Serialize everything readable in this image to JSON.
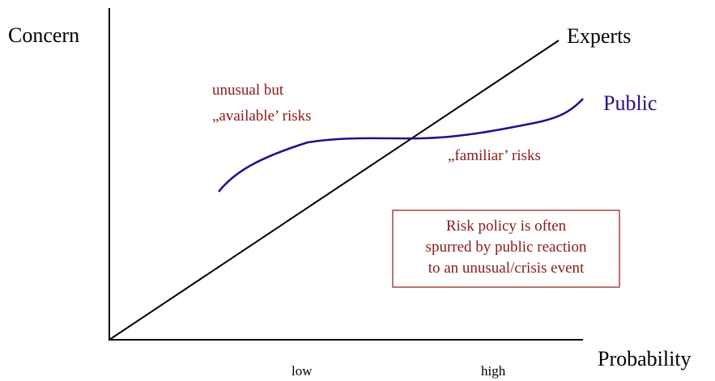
{
  "axes": {
    "y_label": "Concern",
    "x_label": "Probability",
    "x_low": "low",
    "x_high": "high"
  },
  "curves": [
    {
      "label": "Experts"
    },
    {
      "label": "Public"
    }
  ],
  "annotations": {
    "unusual": [
      "unusual but",
      "„available’ risks"
    ],
    "familiar": "„familiar’ risks"
  },
  "box": {
    "lines": [
      "Risk policy is often",
      "spurred by public reaction",
      "to an unusual/crisis event"
    ]
  }
}
